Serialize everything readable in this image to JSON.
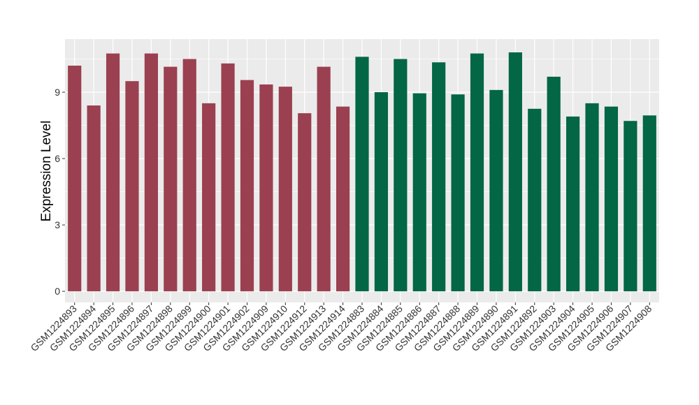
{
  "chart_data": {
    "type": "bar",
    "title": "",
    "xlabel": "",
    "ylabel": "Expression Level",
    "ylim": [
      -0.5,
      11.4
    ],
    "yticks": [
      0,
      3,
      6,
      9
    ],
    "grid": true,
    "legend": "none",
    "categories": [
      "GSM1224893",
      "GSM1224894",
      "GSM1224895",
      "GSM1224896",
      "GSM1224897",
      "GSM1224898",
      "GSM1224899",
      "GSM1224900",
      "GSM1224901",
      "GSM1224902",
      "GSM1224909",
      "GSM1224910",
      "GSM1224912",
      "GSM1224913",
      "GSM1224914",
      "GSM1224883",
      "GSM1224884",
      "GSM1224885",
      "GSM1224886",
      "GSM1224887",
      "GSM1224888",
      "GSM1224889",
      "GSM1224890",
      "GSM1224891",
      "GSM1224892",
      "GSM1224903",
      "GSM1224904",
      "GSM1224905",
      "GSM1224906",
      "GSM1224907",
      "GSM1224908"
    ],
    "values": [
      10.2,
      8.4,
      10.75,
      9.5,
      10.75,
      10.15,
      10.5,
      8.5,
      10.3,
      9.55,
      9.35,
      9.25,
      8.05,
      10.15,
      8.35,
      10.6,
      9.0,
      10.5,
      8.95,
      10.35,
      8.9,
      10.75,
      9.1,
      10.8,
      8.25,
      9.7,
      7.9,
      8.5,
      8.35,
      7.7,
      7.95
    ],
    "bar_colors": [
      "#9b4050",
      "#9b4050",
      "#9b4050",
      "#9b4050",
      "#9b4050",
      "#9b4050",
      "#9b4050",
      "#9b4050",
      "#9b4050",
      "#9b4050",
      "#9b4050",
      "#9b4050",
      "#9b4050",
      "#9b4050",
      "#9b4050",
      "#036644",
      "#036644",
      "#036644",
      "#036644",
      "#036644",
      "#036644",
      "#036644",
      "#036644",
      "#036644",
      "#036644",
      "#036644",
      "#036644",
      "#036644",
      "#036644",
      "#036644",
      "#036644"
    ],
    "panel_color": "#ebebeb",
    "grid_color": "#ffffff"
  }
}
